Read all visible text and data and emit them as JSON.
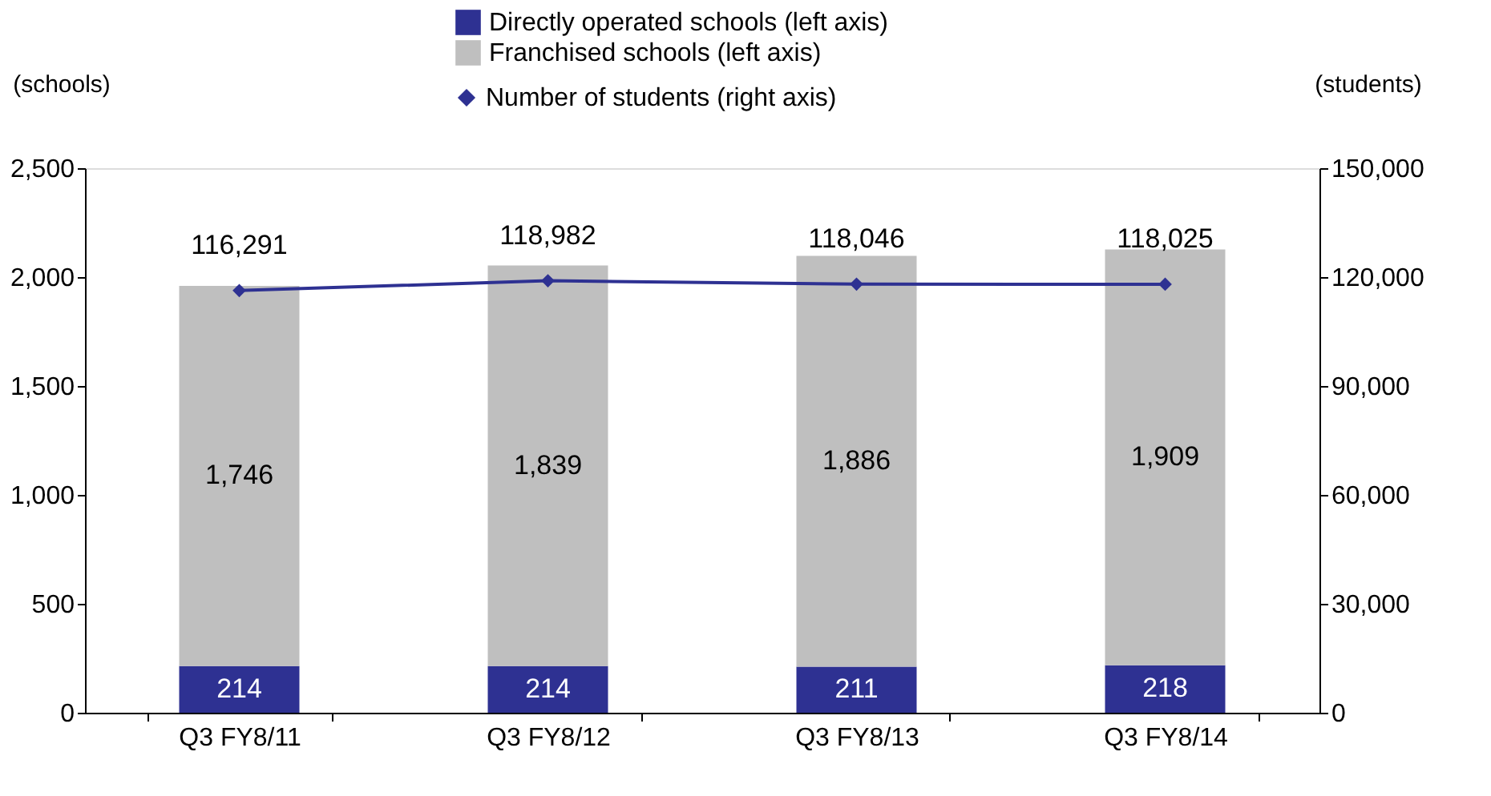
{
  "chart_data": {
    "type": "bar",
    "stacked": true,
    "categories": [
      "Q3 FY8/11",
      "Q3 FY8/12",
      "Q3 FY8/13",
      "Q3 FY8/14"
    ],
    "series": [
      {
        "name": "Directly operated schools (left axis)",
        "color": "#2e3192",
        "values": [
          214,
          214,
          211,
          218
        ],
        "value_labels": [
          "214",
          "214",
          "211",
          "218"
        ]
      },
      {
        "name": "Franchised schools (left axis)",
        "color": "#bfbfbf",
        "values": [
          1746,
          1839,
          1886,
          1909
        ],
        "value_labels": [
          "1,746",
          "1,839",
          "1,886",
          "1,909"
        ]
      },
      {
        "name": "Number of students (right axis)",
        "color": "#2e3192",
        "type": "line",
        "axis": "y2",
        "values": [
          116291,
          118982,
          118046,
          118025
        ],
        "value_labels": [
          "116,291",
          "118,982",
          "118,046",
          "118,025"
        ]
      }
    ],
    "ylabel": "(schools)",
    "y2label": "(students)",
    "ylim": [
      0,
      2500
    ],
    "yticks": [
      0,
      500,
      {
        "value": 1000,
        "label": "1,000"
      },
      {
        "value": 1500,
        "label": "1,500"
      },
      {
        "value": 2000,
        "label": "2,000"
      },
      {
        "value": 2500,
        "label": "2,500"
      }
    ],
    "y2lim": [
      0,
      150000
    ],
    "y2ticks": [
      0,
      {
        "value": 30000,
        "label": "30,000"
      },
      {
        "value": 60000,
        "label": "60,000"
      },
      {
        "value": 90000,
        "label": "90,000"
      },
      {
        "value": 120000,
        "label": "120,000"
      },
      {
        "value": 150000,
        "label": "150,000"
      }
    ],
    "legend": "top",
    "marker": "diamond",
    "grid": false
  }
}
